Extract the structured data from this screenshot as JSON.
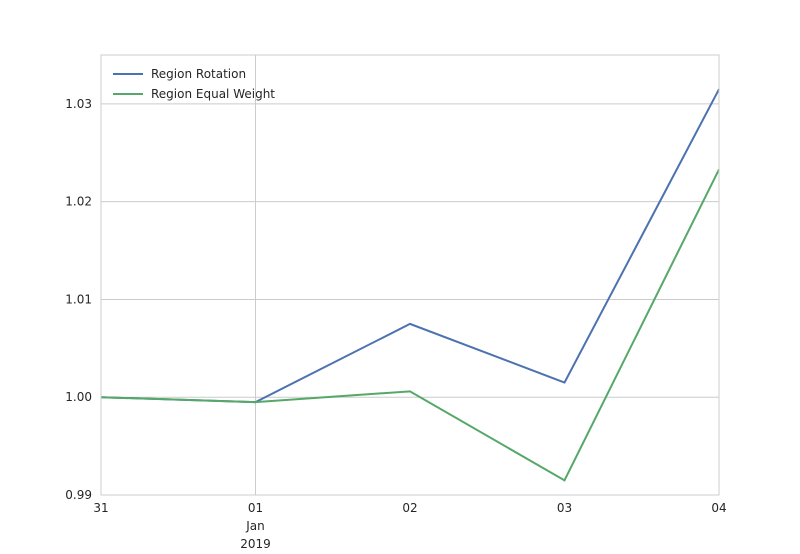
{
  "chart_data": {
    "type": "line",
    "title": "",
    "xlabel": "",
    "ylabel": "",
    "x": [
      "2018-12-31",
      "2019-01-01",
      "2019-01-02",
      "2019-01-03",
      "2019-01-04"
    ],
    "x_tick_labels": [
      {
        "label": "31",
        "sublabel": "",
        "year": ""
      },
      {
        "label": "01",
        "sublabel": "Jan",
        "year": "2019"
      },
      {
        "label": "02",
        "sublabel": "",
        "year": ""
      },
      {
        "label": "03",
        "sublabel": "",
        "year": ""
      },
      {
        "label": "04",
        "sublabel": "",
        "year": ""
      }
    ],
    "ylim": [
      0.99,
      1.035
    ],
    "y_ticks": [
      0.99,
      1.0,
      1.01,
      1.02,
      1.03
    ],
    "y_tick_labels": [
      "0.99",
      "1.00",
      "1.01",
      "1.02",
      "1.03"
    ],
    "grid": true,
    "legend_position": "top-left",
    "series": [
      {
        "name": "Region Rotation",
        "color": "#4c72b0",
        "values": [
          1.0,
          0.9995,
          1.0075,
          1.0015,
          1.0315
        ]
      },
      {
        "name": "Region Equal Weight",
        "color": "#55a868",
        "values": [
          1.0,
          0.9995,
          1.0006,
          0.9915,
          1.0233
        ]
      }
    ],
    "colors": {
      "grid": "#cccccc",
      "axes_edge": "#cccccc",
      "text": "#262626"
    }
  }
}
